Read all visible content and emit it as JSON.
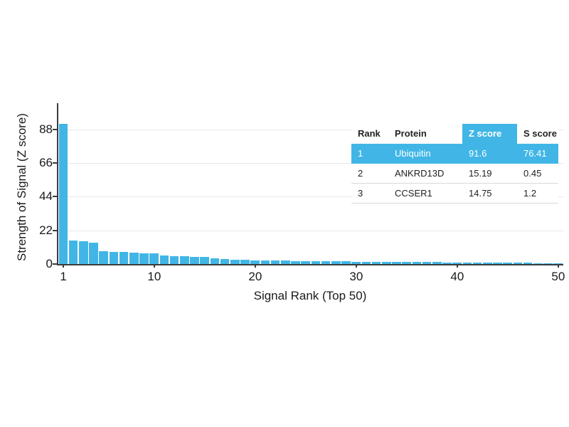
{
  "colors": {
    "bar": "#41b6e6",
    "highlight": "#41b6e6",
    "axis": "#3c3c3c",
    "grid": "#e8e8e8"
  },
  "chart_data": {
    "type": "bar",
    "xlabel": "Signal Rank (Top 50)",
    "ylabel": "Strength of Signal (Z score)",
    "yticks": [
      0,
      22,
      44,
      66,
      88
    ],
    "xticks": [
      1,
      10,
      20,
      30,
      40,
      50
    ],
    "ylim": [
      0,
      105
    ],
    "x_range": [
      1,
      50
    ],
    "grid": "horizontal",
    "values": [
      91.6,
      15.19,
      14.75,
      13.9,
      8.4,
      8.0,
      7.8,
      7.5,
      7.2,
      6.9,
      5.4,
      5.1,
      4.9,
      4.7,
      4.5,
      3.7,
      3.2,
      2.9,
      2.7,
      2.5,
      2.35,
      2.2,
      2.1,
      2.0,
      1.9,
      1.8,
      1.75,
      1.7,
      1.65,
      1.6,
      1.55,
      1.5,
      1.45,
      1.4,
      1.35,
      1.3,
      1.25,
      1.2,
      1.15,
      1.1,
      1.05,
      1.0,
      0.95,
      0.9,
      0.85,
      0.8,
      0.75,
      0.7,
      0.65,
      0.6
    ]
  },
  "table": {
    "headers": [
      "Rank",
      "Protein",
      "Z score",
      "S score"
    ],
    "highlight_header_index": 2,
    "highlight_row_index": 0,
    "rows": [
      [
        "1",
        "Ubiquitin",
        "91.6",
        "76.41"
      ],
      [
        "2",
        "ANKRD13D",
        "15.19",
        "0.45"
      ],
      [
        "3",
        "CCSER1",
        "14.75",
        "1.2"
      ]
    ]
  }
}
